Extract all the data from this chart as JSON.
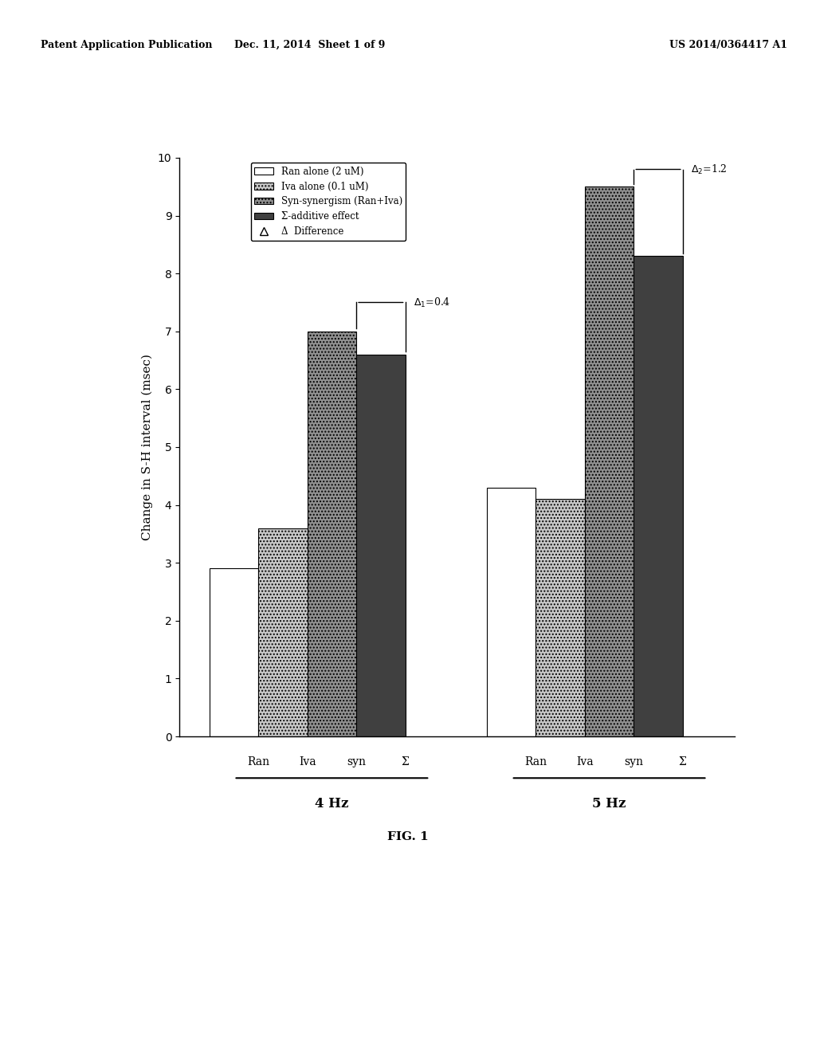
{
  "groups": [
    "4 Hz",
    "5 Hz"
  ],
  "bar_labels": [
    "Ran",
    "Iva",
    "syn",
    "Σ"
  ],
  "values_4hz": [
    2.9,
    3.6,
    7.0,
    6.6
  ],
  "values_5hz": [
    4.3,
    4.1,
    9.5,
    8.3
  ],
  "bar_colors": [
    "white",
    "#c8c8c8",
    "#909090",
    "#404040"
  ],
  "bar_hatches": [
    null,
    "....",
    "....",
    null
  ],
  "ylabel": "Change in S-H interval (msec)",
  "ylim": [
    0,
    10
  ],
  "yticks": [
    0,
    1,
    2,
    3,
    4,
    5,
    6,
    7,
    8,
    9,
    10
  ],
  "legend_labels": [
    "Ran alone (2 uM)",
    "Iva alone (0.1 uM)",
    "Syn-synergism (Ran+Iva)",
    "Σ-additive effect",
    "Δ  Difference"
  ],
  "delta1_label": "Δ1=0.4",
  "delta2_label": "Δ2=1.2",
  "fig_label": "FIG. 1",
  "header_left": "Patent Application Publication",
  "header_mid": "Dec. 11, 2014  Sheet 1 of 9",
  "header_right": "US 2014/0364417 A1",
  "background_color": "white",
  "edgecolor": "black"
}
